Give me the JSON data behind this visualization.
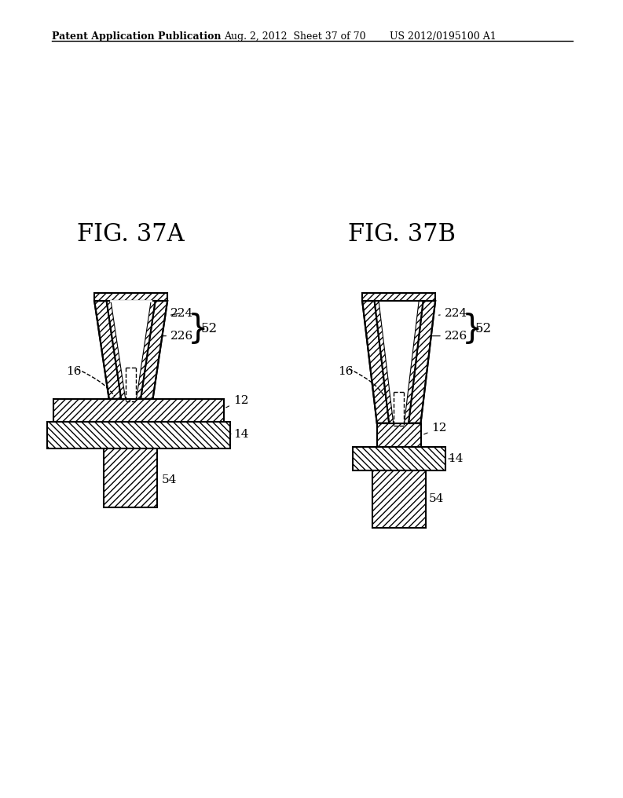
{
  "header_left": "Patent Application Publication",
  "header_mid": "Aug. 2, 2012  Sheet 37 of 70",
  "header_right": "US 2012/0195100 A1",
  "fig_a_title": "FIG. 37A",
  "fig_b_title": "FIG. 37B",
  "bg_color": "#ffffff",
  "line_color": "#000000"
}
